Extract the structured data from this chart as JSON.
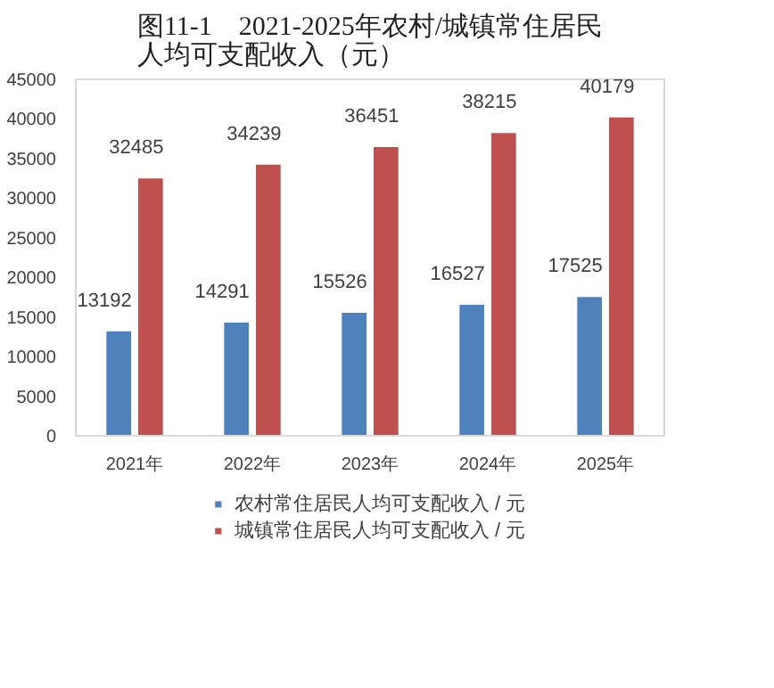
{
  "chart_data": {
    "type": "bar",
    "title": "图11-1　2021-2025年农村/城镇常住居民人均可支配收入（元）",
    "categories": [
      "2021年",
      "2022年",
      "2023年",
      "2024年",
      "2025年"
    ],
    "series": [
      {
        "name": "农村常住居民人均可支配收入 / 元",
        "color": "#4f81bd",
        "values": [
          13192,
          14291,
          15526,
          16527,
          17525
        ]
      },
      {
        "name": "城镇常住居民人均可支配收入 / 元",
        "color": "#c0504d",
        "values": [
          32485,
          34239,
          36451,
          38215,
          40179
        ]
      }
    ],
    "ylim": [
      0,
      45000
    ],
    "yticks": [
      0,
      5000,
      10000,
      15000,
      20000,
      25000,
      30000,
      35000,
      40000,
      45000
    ],
    "data_labels": true,
    "grid": false,
    "legend": "bottom"
  }
}
